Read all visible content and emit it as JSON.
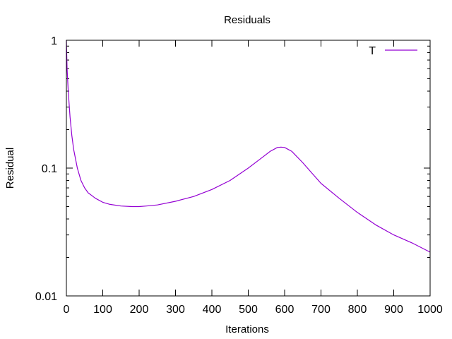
{
  "chart_data": {
    "type": "line",
    "title": "Residuals",
    "xlabel": "Iterations",
    "ylabel": "Residual",
    "xlim": [
      0,
      1000
    ],
    "ylim": [
      0.01,
      1
    ],
    "yscale": "log",
    "grid": false,
    "legend_position": "top-right",
    "x_ticks": [
      0,
      100,
      200,
      300,
      400,
      500,
      600,
      700,
      800,
      900,
      1000
    ],
    "x_tick_labels": [
      "0",
      "100",
      "200",
      "300",
      "400",
      "500",
      "600",
      "700",
      "800",
      "900",
      "1000"
    ],
    "y_ticks": [
      1,
      0.1,
      0.01
    ],
    "y_tick_labels": [
      "1",
      "0.1",
      "0.01"
    ],
    "series": [
      {
        "name": "T",
        "color": "#9400d3",
        "x": [
          0,
          2,
          5,
          10,
          15,
          20,
          30,
          40,
          50,
          60,
          80,
          100,
          120,
          150,
          180,
          200,
          220,
          250,
          300,
          350,
          400,
          450,
          500,
          530,
          560,
          580,
          590,
          600,
          620,
          650,
          680,
          700,
          750,
          800,
          850,
          900,
          950,
          1000
        ],
        "y": [
          1.0,
          0.6,
          0.4,
          0.25,
          0.18,
          0.14,
          0.1,
          0.08,
          0.07,
          0.064,
          0.058,
          0.054,
          0.052,
          0.0505,
          0.05,
          0.05,
          0.0505,
          0.0515,
          0.055,
          0.06,
          0.068,
          0.08,
          0.1,
          0.116,
          0.135,
          0.145,
          0.146,
          0.145,
          0.135,
          0.11,
          0.088,
          0.076,
          0.058,
          0.045,
          0.036,
          0.03,
          0.026,
          0.022
        ]
      }
    ]
  }
}
